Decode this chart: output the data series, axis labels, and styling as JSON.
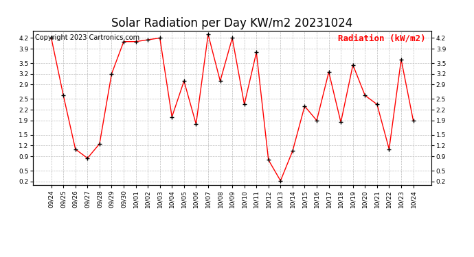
{
  "title": "Solar Radiation per Day KW/m2 20231024",
  "copyright_text": "Copyright 2023 Cartronics.com",
  "legend_label": "Radiation (kW/m2)",
  "dates": [
    "09/24",
    "09/25",
    "09/26",
    "09/27",
    "09/28",
    "09/29",
    "09/30",
    "10/01",
    "10/02",
    "10/03",
    "10/04",
    "10/05",
    "10/06",
    "10/07",
    "10/08",
    "10/09",
    "10/10",
    "10/11",
    "10/12",
    "10/13",
    "10/14",
    "10/15",
    "10/16",
    "10/17",
    "10/18",
    "10/19",
    "10/20",
    "10/21",
    "10/22",
    "10/23",
    "10/24"
  ],
  "values": [
    4.2,
    2.6,
    1.1,
    0.85,
    1.25,
    3.2,
    4.1,
    4.1,
    4.15,
    4.2,
    2.0,
    3.0,
    1.8,
    4.3,
    3.0,
    4.2,
    2.35,
    3.8,
    0.8,
    0.22,
    1.05,
    2.3,
    1.9,
    3.25,
    1.85,
    3.45,
    2.6,
    2.35,
    1.1,
    3.6,
    1.9
  ],
  "line_color": "red",
  "marker_color": "black",
  "background_color": "white",
  "grid_color": "#bbbbbb",
  "title_fontsize": 12,
  "copyright_fontsize": 7,
  "legend_fontsize": 9,
  "tick_fontsize": 6.5,
  "ylim": [
    0.1,
    4.4
  ],
  "yticks": [
    0.2,
    0.5,
    0.9,
    1.2,
    1.5,
    1.9,
    2.2,
    2.5,
    2.9,
    3.2,
    3.5,
    3.9,
    4.2
  ]
}
